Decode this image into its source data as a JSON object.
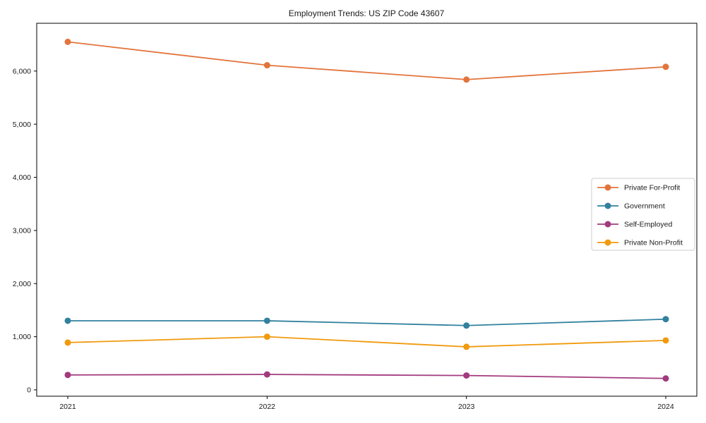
{
  "chart_data": {
    "type": "line",
    "title": "Employment Trends: US ZIP Code 43607",
    "categories": [
      "2021",
      "2022",
      "2023",
      "2024"
    ],
    "series": [
      {
        "name": "Private For-Profit",
        "color": "#e2743c",
        "values": [
          6550,
          6110,
          5840,
          6080
        ]
      },
      {
        "name": "Government",
        "color": "#31819e",
        "values": [
          1300,
          1300,
          1210,
          1330
        ]
      },
      {
        "name": "Self-Employed",
        "color": "#a23a7e",
        "values": [
          280,
          290,
          270,
          215
        ]
      },
      {
        "name": "Private Non-Profit",
        "color": "#f09a0e",
        "values": [
          890,
          1000,
          810,
          930
        ]
      }
    ],
    "xlabel": "",
    "ylabel": "",
    "ylim": [
      -120,
      6900
    ],
    "yticks": [
      0,
      1000,
      2000,
      3000,
      4000,
      5000,
      6000
    ],
    "ytick_labels": [
      "0",
      "1,000",
      "2,000",
      "3,000",
      "4,000",
      "5,000",
      "6,000"
    ],
    "grid": false,
    "legend_position": "center-right",
    "frame": true,
    "colors": {
      "spine": "#000000",
      "background": "#ffffff",
      "legend_border": "#cccccc",
      "text": "#1a1a1a"
    }
  }
}
